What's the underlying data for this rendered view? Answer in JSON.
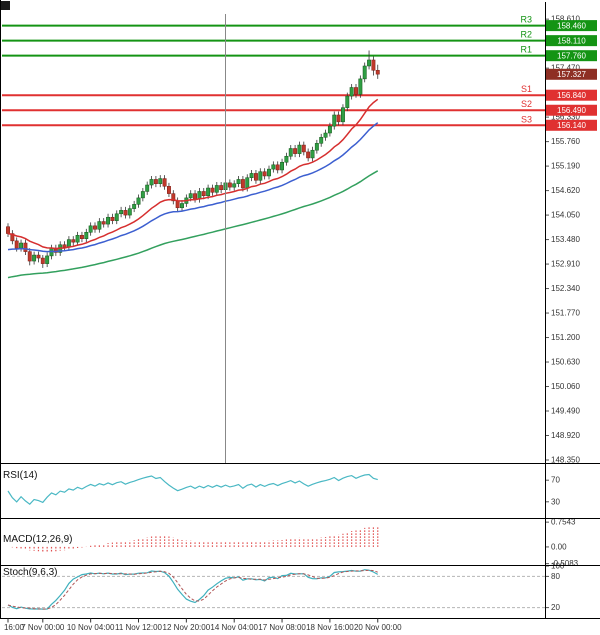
{
  "page": {
    "background": "#ffffff"
  },
  "chart_data": [
    {
      "type": "candlestick",
      "ylim": [
        148.28,
        158.73
      ],
      "yticks": [
        158.61,
        157.47,
        156.33,
        155.76,
        155.19,
        154.62,
        154.05,
        153.48,
        152.91,
        152.34,
        151.77,
        151.2,
        150.63,
        150.06,
        149.49,
        148.92,
        148.35
      ],
      "current_price": 157.327,
      "pivots": [
        {
          "label": "R3",
          "value": 158.46,
          "color": "#149414"
        },
        {
          "label": "R2",
          "value": 158.11,
          "color": "#149414"
        },
        {
          "label": "R1",
          "value": 157.76,
          "color": "#149414"
        },
        {
          "label": "S1",
          "value": 156.84,
          "color": "#e03131"
        },
        {
          "label": "S2",
          "value": 156.49,
          "color": "#e03131"
        },
        {
          "label": "S3",
          "value": 156.14,
          "color": "#e03131"
        }
      ],
      "xticks": [
        {
          "i": 0,
          "label": "16:00"
        },
        {
          "i": 8,
          "label": "7 Nov 00:00"
        },
        {
          "i": 19,
          "label": "10 Nov 04:00"
        },
        {
          "i": 30,
          "label": "11 Nov 12:00"
        },
        {
          "i": 41,
          "label": "12 Nov 20:00"
        },
        {
          "i": 52,
          "label": "14 Nov 04:00"
        },
        {
          "i": 63,
          "label": "17 Nov 08:00"
        },
        {
          "i": 74,
          "label": "18 Nov 16:00"
        },
        {
          "i": 85,
          "label": "20 Nov 00:00"
        }
      ],
      "crosshair_index": 50,
      "colors": {
        "up": "#2f9e44",
        "down": "#c0392b",
        "wick": "#333333",
        "price_box": "#8e2f24"
      },
      "overlays": [
        {
          "name": "ma-fast",
          "type": "ema",
          "period": 16,
          "seed_offset": 0,
          "color": "#d62f2f"
        },
        {
          "name": "ma-mid",
          "type": "ema",
          "period": 30,
          "seed_offset": -0.4,
          "color": "#3c5fd0"
        },
        {
          "name": "ma-slow",
          "type": "ema",
          "period": 80,
          "seed_offset": -1.05,
          "color": "#33a05e"
        }
      ],
      "candles": [
        [
          153.78,
          153.86,
          153.54,
          153.62
        ],
        [
          153.62,
          153.7,
          153.37,
          153.45
        ],
        [
          153.45,
          153.53,
          153.2,
          153.28
        ],
        [
          153.28,
          153.48,
          153.2,
          153.4
        ],
        [
          153.4,
          153.48,
          153.12,
          153.2
        ],
        [
          153.2,
          153.28,
          152.88,
          152.98
        ],
        [
          152.98,
          153.2,
          152.9,
          153.12
        ],
        [
          153.12,
          153.2,
          152.95,
          153.05
        ],
        [
          153.05,
          153.12,
          152.82,
          152.92
        ],
        [
          152.92,
          153.18,
          152.84,
          153.1
        ],
        [
          153.1,
          153.36,
          153.02,
          153.28
        ],
        [
          153.28,
          153.36,
          153.1,
          153.18
        ],
        [
          153.18,
          153.44,
          153.1,
          153.36
        ],
        [
          153.36,
          153.44,
          153.22,
          153.3
        ],
        [
          153.3,
          153.56,
          153.22,
          153.48
        ],
        [
          153.48,
          153.56,
          153.34,
          153.42
        ],
        [
          153.42,
          153.66,
          153.34,
          153.58
        ],
        [
          153.58,
          153.66,
          153.42,
          153.5
        ],
        [
          153.5,
          153.73,
          153.42,
          153.65
        ],
        [
          153.65,
          153.88,
          153.57,
          153.8
        ],
        [
          153.8,
          153.88,
          153.64,
          153.72
        ],
        [
          153.72,
          153.98,
          153.64,
          153.9
        ],
        [
          153.9,
          153.98,
          153.76,
          153.84
        ],
        [
          153.84,
          154.08,
          153.76,
          154.0
        ],
        [
          154.0,
          154.08,
          153.84,
          153.92
        ],
        [
          153.92,
          154.16,
          153.84,
          154.08
        ],
        [
          154.08,
          154.24,
          154.0,
          154.16
        ],
        [
          154.16,
          154.24,
          153.97,
          154.05
        ],
        [
          154.05,
          154.28,
          153.97,
          154.2
        ],
        [
          154.2,
          154.38,
          154.12,
          154.3
        ],
        [
          154.3,
          154.53,
          154.22,
          154.45
        ],
        [
          154.45,
          154.68,
          154.37,
          154.6
        ],
        [
          154.6,
          154.83,
          154.52,
          154.75
        ],
        [
          154.75,
          154.96,
          154.67,
          154.88
        ],
        [
          154.88,
          154.96,
          154.7,
          154.78
        ],
        [
          154.78,
          154.98,
          154.7,
          154.9
        ],
        [
          154.9,
          154.98,
          154.64,
          154.72
        ],
        [
          154.72,
          154.8,
          154.47,
          154.55
        ],
        [
          154.55,
          154.63,
          154.3,
          154.38
        ],
        [
          154.38,
          154.46,
          154.12,
          154.22
        ],
        [
          154.22,
          154.4,
          154.14,
          154.32
        ],
        [
          154.32,
          154.53,
          154.24,
          154.45
        ],
        [
          154.45,
          154.63,
          154.37,
          154.55
        ],
        [
          154.55,
          154.63,
          154.34,
          154.42
        ],
        [
          154.42,
          154.68,
          154.34,
          154.6
        ],
        [
          154.6,
          154.68,
          154.42,
          154.5
        ],
        [
          154.5,
          154.76,
          154.42,
          154.68
        ],
        [
          154.68,
          154.76,
          154.5,
          154.58
        ],
        [
          154.58,
          154.82,
          154.5,
          154.74
        ],
        [
          154.74,
          154.82,
          154.56,
          154.64
        ],
        [
          154.64,
          154.88,
          154.56,
          154.8
        ],
        [
          154.8,
          154.88,
          154.62,
          154.7
        ],
        [
          154.7,
          154.86,
          154.62,
          154.78
        ],
        [
          154.78,
          154.96,
          154.7,
          154.88
        ],
        [
          154.88,
          154.96,
          154.6,
          154.68
        ],
        [
          154.68,
          155.0,
          154.6,
          154.92
        ],
        [
          154.92,
          155.1,
          154.84,
          155.02
        ],
        [
          155.02,
          155.1,
          154.78,
          154.86
        ],
        [
          154.86,
          155.14,
          154.78,
          155.06
        ],
        [
          155.06,
          155.14,
          154.88,
          154.96
        ],
        [
          154.96,
          155.2,
          154.88,
          155.12
        ],
        [
          155.12,
          155.3,
          155.04,
          155.22
        ],
        [
          155.22,
          155.3,
          155.02,
          155.1
        ],
        [
          155.1,
          155.36,
          155.02,
          155.28
        ],
        [
          155.28,
          155.5,
          155.2,
          155.42
        ],
        [
          155.42,
          155.68,
          155.34,
          155.6
        ],
        [
          155.6,
          155.68,
          155.4,
          155.48
        ],
        [
          155.48,
          155.76,
          155.4,
          155.68
        ],
        [
          155.68,
          155.76,
          155.44,
          155.52
        ],
        [
          155.52,
          155.6,
          155.3,
          155.38
        ],
        [
          155.38,
          155.64,
          155.3,
          155.56
        ],
        [
          155.56,
          155.8,
          155.48,
          155.72
        ],
        [
          155.72,
          155.94,
          155.64,
          155.86
        ],
        [
          155.86,
          156.04,
          155.78,
          155.96
        ],
        [
          155.96,
          156.2,
          155.88,
          156.12
        ],
        [
          156.12,
          156.46,
          156.04,
          156.38
        ],
        [
          156.38,
          156.46,
          156.14,
          156.22
        ],
        [
          156.22,
          156.63,
          156.14,
          156.55
        ],
        [
          156.55,
          156.9,
          156.47,
          156.82
        ],
        [
          156.82,
          157.1,
          156.74,
          157.02
        ],
        [
          157.02,
          157.1,
          156.78,
          156.86
        ],
        [
          156.86,
          157.3,
          156.78,
          157.22
        ],
        [
          157.22,
          157.6,
          157.14,
          157.52
        ],
        [
          157.52,
          157.88,
          157.44,
          157.66
        ],
        [
          157.66,
          157.74,
          157.3,
          157.42
        ],
        [
          157.42,
          157.55,
          157.22,
          157.33
        ]
      ]
    },
    {
      "type": "line",
      "name": "rsi",
      "label": "RSI(14)",
      "period": 14,
      "range": [
        0,
        100
      ],
      "yticks": [
        70,
        30
      ],
      "color": "#4ab8c4"
    },
    {
      "type": "macd",
      "name": "macd",
      "label": "MACD(12,26,9)",
      "params": [
        12,
        26,
        9
      ],
      "range": [
        -0.55,
        0.85
      ],
      "yticks": [
        {
          "label": "0.7543",
          "v": 0.7543
        },
        {
          "label": "0.00",
          "v": 0
        },
        {
          "label": "-0.5083",
          "v": -0.5083
        }
      ],
      "color": "#e05050"
    },
    {
      "type": "stoch",
      "name": "stoch",
      "label": "Stoch(9,6,3)",
      "params": [
        9,
        6,
        3
      ],
      "range": [
        0,
        100
      ],
      "yticks": [
        100,
        80,
        20
      ],
      "guides": [
        80,
        20
      ],
      "k_color": "#3fb0bd",
      "d_color": "#b05555"
    }
  ]
}
